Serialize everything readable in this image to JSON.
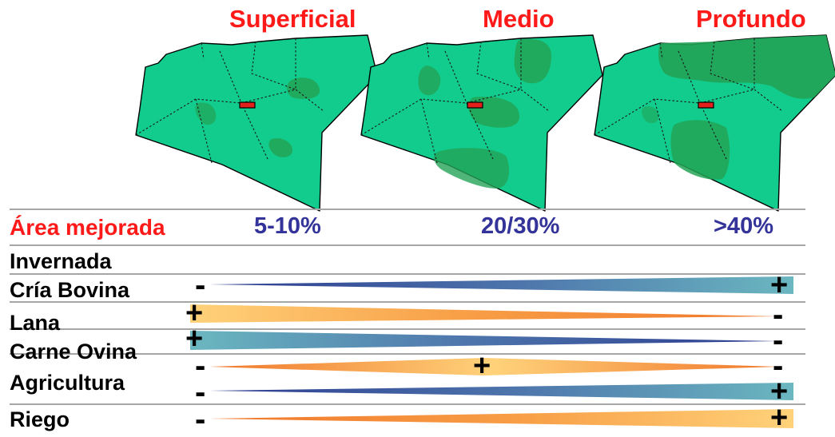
{
  "colors": {
    "title_red": "#ff1a1a",
    "percent_blue": "#333399",
    "map_fill": "#11cc8c",
    "map_dark": "#23a356",
    "marker_red": "#e3201b",
    "separator": "#a6a6a6",
    "navy": "#2b3a8f",
    "teal": "#6bb7c0",
    "orange": "#f0762a",
    "yellow": "#ffd27a"
  },
  "maps": [
    {
      "title": "Superficial",
      "percent": "5-10%"
    },
    {
      "title": "Medio",
      "percent": "20/30%"
    },
    {
      "title": "Profundo",
      "percent": ">40%"
    }
  ],
  "header_label": "Área mejorada",
  "rows": [
    {
      "label": "Invernada",
      "shape": "none",
      "palette": "none",
      "plus": "",
      "minus": ""
    },
    {
      "label": "Cría Bovina",
      "shape": "grow",
      "palette": "blue",
      "plus": "+",
      "minus": "-"
    },
    {
      "label": "Lana",
      "shape": "shrink",
      "palette": "orange",
      "plus": "+",
      "minus": "-"
    },
    {
      "label": "Carne Ovina",
      "shape": "shrink",
      "palette": "blue",
      "plus": "+",
      "minus": "-"
    },
    {
      "label": "Agricultura",
      "shape": "diamond",
      "palette": "orange",
      "plus": "+",
      "minus": "-"
    },
    {
      "label": "Riego",
      "shape": "grow",
      "palette": "blue",
      "plus": "+",
      "minus": "-"
    },
    {
      "label": "",
      "shape": "grow",
      "palette": "orange",
      "plus": "+",
      "minus": "-"
    }
  ]
}
